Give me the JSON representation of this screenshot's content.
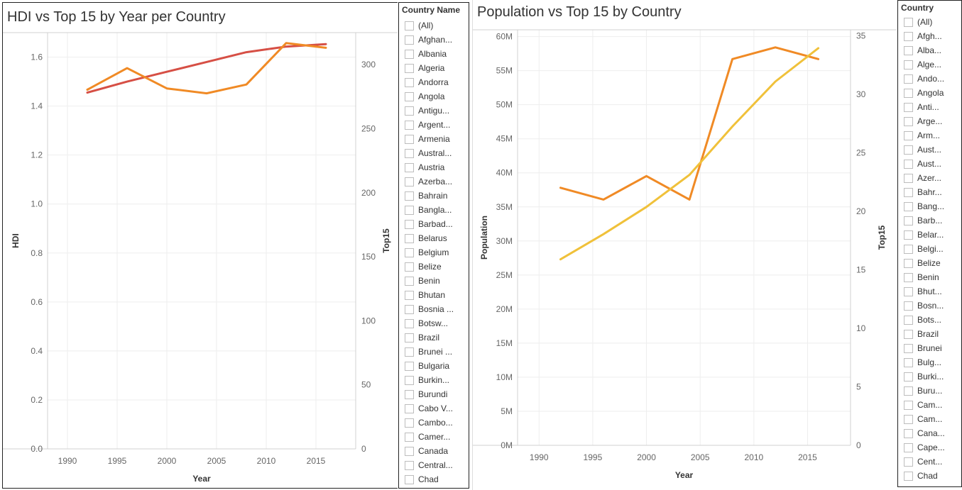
{
  "left_chart": {
    "title": "HDI vs Top 15 by Year per Country",
    "chart_data": {
      "type": "line",
      "x_label": "Year",
      "x_ticks": [
        "1990",
        "1995",
        "2000",
        "2005",
        "2010",
        "2015"
      ],
      "xlim": [
        1988,
        2019
      ],
      "y_left_label": "HDI",
      "y_left_ticks": [
        "0.0",
        "0.2",
        "0.4",
        "0.6",
        "0.8",
        "1.0",
        "1.2",
        "1.4",
        "1.6"
      ],
      "y_left_lim": [
        0,
        1.7
      ],
      "y_right_label": "Top15",
      "y_right_ticks": [
        "0",
        "50",
        "100",
        "150",
        "200",
        "250",
        "300"
      ],
      "y_right_lim": [
        0,
        325
      ],
      "series": [
        {
          "axis": "left",
          "color": "#d64f45",
          "x": [
            1992,
            1996,
            2000,
            2004,
            2008,
            2012,
            2016
          ],
          "y": [
            1.455,
            1.5,
            1.54,
            1.58,
            1.62,
            1.643,
            1.653
          ]
        },
        {
          "axis": "left",
          "color": "#f08a25",
          "x": [
            1992,
            1996,
            2000,
            2004,
            2008,
            2012,
            2016
          ],
          "y": [
            1.467,
            1.555,
            1.472,
            1.452,
            1.488,
            1.657,
            1.638
          ]
        }
      ]
    }
  },
  "left_filter": {
    "title": "Country Name",
    "items": [
      "(All)",
      "Afghan...",
      "Albania",
      "Algeria",
      "Andorra",
      "Angola",
      "Antigu...",
      "Argent...",
      "Armenia",
      "Austral...",
      "Austria",
      "Azerba...",
      "Bahrain",
      "Bangla...",
      "Barbad...",
      "Belarus",
      "Belgium",
      "Belize",
      "Benin",
      "Bhutan",
      "Bosnia ...",
      "Botsw...",
      "Brazil",
      "Brunei ...",
      "Bulgaria",
      "Burkin...",
      "Burundi",
      "Cabo V...",
      "Cambo...",
      "Camer...",
      "Canada",
      "Central...",
      "Chad"
    ]
  },
  "right_chart": {
    "title": "Population vs Top 15 by Country",
    "chart_data": {
      "type": "line",
      "x_label": "Year",
      "x_ticks": [
        "1990",
        "1995",
        "2000",
        "2005",
        "2010",
        "2015"
      ],
      "xlim": [
        1988,
        2019
      ],
      "y_left_label": "Population",
      "y_left_ticks": [
        "0M",
        "5M",
        "10M",
        "15M",
        "20M",
        "25M",
        "30M",
        "35M",
        "40M",
        "45M",
        "50M",
        "55M",
        "60M"
      ],
      "y_left_lim": [
        0,
        61000000
      ],
      "y_right_label": "Top15",
      "y_right_ticks": [
        "0",
        "5",
        "10",
        "15",
        "20",
        "25",
        "30",
        "35"
      ],
      "y_right_lim": [
        0,
        35.5
      ],
      "series": [
        {
          "axis": "right",
          "color": "#f08a25",
          "x": [
            1992,
            1996,
            2000,
            2004,
            2008,
            2012,
            2016
          ],
          "y": [
            22,
            21,
            23,
            21,
            33,
            34,
            33
          ]
        },
        {
          "axis": "left",
          "color": "#f0c13a",
          "x": [
            1992,
            1996,
            2000,
            2004,
            2008,
            2012,
            2016
          ],
          "y": [
            27300000,
            31000000,
            35000000,
            39700000,
            46800000,
            53400000,
            58300000
          ]
        }
      ]
    }
  },
  "right_filter": {
    "title": "Country",
    "items": [
      "(All)",
      "Afgh...",
      "Alba...",
      "Alge...",
      "Ando...",
      "Angola",
      "Anti...",
      "Arge...",
      "Arm...",
      "Aust...",
      "Aust...",
      "Azer...",
      "Bahr...",
      "Bang...",
      "Barb...",
      "Belar...",
      "Belgi...",
      "Belize",
      "Benin",
      "Bhut...",
      "Bosn...",
      "Bots...",
      "Brazil",
      "Brunei",
      "Bulg...",
      "Burki...",
      "Buru...",
      "Cam...",
      "Cam...",
      "Cana...",
      "Cape...",
      "Cent...",
      "Chad"
    ]
  }
}
